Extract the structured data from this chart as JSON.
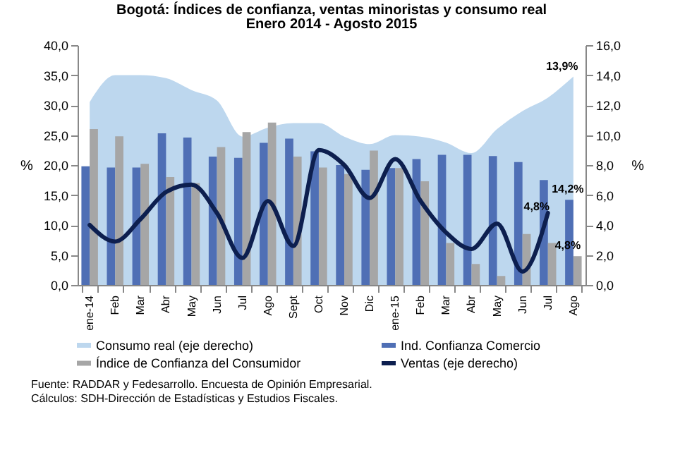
{
  "chart_data": {
    "type": "bar",
    "title": "Bogotá: Índices de confianza, ventas minoristas y consumo real",
    "subtitle": "Enero 2014 - Agosto 2015",
    "categories": [
      "ene-14",
      "Feb",
      "Mar",
      "Abr",
      "May",
      "Jun",
      "Jul",
      "Ago",
      "Sept",
      "Oct",
      "Nov",
      "Dic",
      "ene-15",
      "Feb",
      "Mar",
      "Abr",
      "May",
      "Jun",
      "Jul",
      "Ago"
    ],
    "series": [
      {
        "name": "Consumo real (eje derecho)",
        "type": "area",
        "axis": "y2",
        "color": "#bdd7ee",
        "values": [
          12.2,
          14.0,
          14.0,
          13.8,
          13.0,
          12.3,
          9.9,
          10.5,
          10.8,
          10.8,
          9.9,
          9.4,
          10.0,
          9.9,
          9.5,
          8.8,
          10.4,
          11.6,
          12.5,
          13.9
        ],
        "value_labels": [
          null,
          null,
          null,
          null,
          null,
          null,
          null,
          null,
          null,
          null,
          null,
          null,
          null,
          null,
          null,
          null,
          null,
          null,
          null,
          "13,9%"
        ]
      },
      {
        "name": "Ind. Confianza Comercio",
        "color": "#4f6fb5",
        "values": [
          19.8,
          19.6,
          19.6,
          25.3,
          24.6,
          21.4,
          21.2,
          23.7,
          24.4,
          22.3,
          20.0,
          19.2,
          19.5,
          21.0,
          21.7,
          21.7,
          21.5,
          20.5,
          17.5,
          14.2
        ],
        "value_labels": [
          null,
          null,
          null,
          null,
          null,
          null,
          null,
          null,
          null,
          null,
          null,
          null,
          null,
          null,
          null,
          null,
          null,
          null,
          null,
          "14,2%"
        ]
      },
      {
        "name": "Índice de Confianza del Consumidor",
        "color": "#a6a6a6",
        "values": [
          26.0,
          24.8,
          20.2,
          18.0,
          17.0,
          23.0,
          25.5,
          27.1,
          21.4,
          19.6,
          18.5,
          22.4,
          19.5,
          17.3,
          7.0,
          3.5,
          1.5,
          8.5,
          7.0,
          4.8
        ],
        "value_labels": [
          null,
          null,
          null,
          null,
          null,
          null,
          null,
          null,
          null,
          null,
          null,
          null,
          null,
          null,
          null,
          null,
          null,
          null,
          null,
          "4,8%"
        ]
      },
      {
        "name": "Ventas (eje derecho)",
        "type": "line",
        "axis": "y2",
        "color": "#0d1f4f",
        "values": [
          4.0,
          2.9,
          4.4,
          6.2,
          6.7,
          4.8,
          1.8,
          5.6,
          2.6,
          9.0,
          8.0,
          5.8,
          8.4,
          5.6,
          3.5,
          2.4,
          4.1,
          0.9,
          4.8,
          null
        ],
        "value_labels": [
          null,
          null,
          null,
          null,
          null,
          null,
          null,
          null,
          null,
          null,
          null,
          null,
          null,
          null,
          null,
          null,
          null,
          null,
          "4,8%",
          null
        ]
      }
    ],
    "ylabel": "%",
    "y2label": "%",
    "ylim": [
      0,
      40
    ],
    "yticks": [
      {
        "value": 0,
        "label": "0,0"
      },
      {
        "value": 5,
        "label": "5,0"
      },
      {
        "value": 10,
        "label": "10,0"
      },
      {
        "value": 15,
        "label": "15,0"
      },
      {
        "value": 20,
        "label": "20,0"
      },
      {
        "value": 25,
        "label": "25,0"
      },
      {
        "value": 30,
        "label": "30,0"
      },
      {
        "value": 35,
        "label": "35,0"
      },
      {
        "value": 40,
        "label": "40,0"
      }
    ],
    "y2lim": [
      0,
      16
    ],
    "y2ticks": [
      {
        "value": 0,
        "label": "0,0"
      },
      {
        "value": 2,
        "label": "2,0"
      },
      {
        "value": 4,
        "label": "4,0"
      },
      {
        "value": 6,
        "label": "6,0"
      },
      {
        "value": 8,
        "label": "8,0"
      },
      {
        "value": 10,
        "label": "10,0"
      },
      {
        "value": 12,
        "label": "12,0"
      },
      {
        "value": 14,
        "label": "14,0"
      },
      {
        "value": 16,
        "label": "16,0"
      }
    ],
    "legend": "bottom",
    "grid": false,
    "annotations": [
      "Fuente: RADDAR y Fedesarrollo. Encuesta de Opinión Empresarial.",
      "Cálculos: SDH-Dirección de Estadísticas y Estudios Fiscales."
    ]
  }
}
